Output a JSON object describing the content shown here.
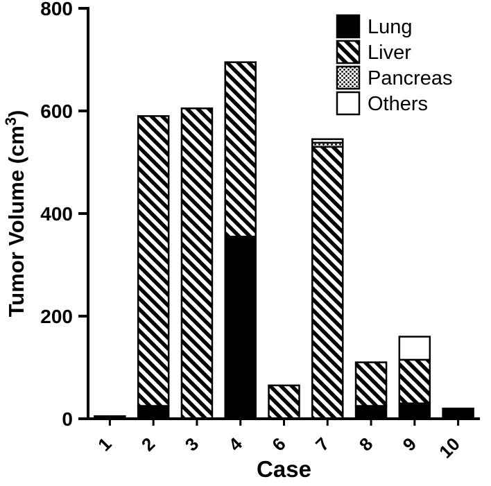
{
  "figure": {
    "background": "#ffffff",
    "axis_color": "#000000",
    "bar_outline_color": "#000000"
  },
  "chart_data": {
    "type": "bar",
    "stacked": true,
    "title": "",
    "xlabel": "Case",
    "ylabel": "Tumor Volume (cm³)",
    "ylabel_parts": {
      "base": "Tumor Volume (cm",
      "sup": "3",
      "close": ")"
    },
    "ylim": [
      0,
      800
    ],
    "yticks": [
      0,
      200,
      400,
      600,
      800
    ],
    "grid": false,
    "legend_position": "top-right",
    "categories": [
      "1",
      "2",
      "3",
      "4",
      "6",
      "7",
      "8",
      "9",
      "10"
    ],
    "series": [
      {
        "name": "Lung",
        "pattern": "solid",
        "values": [
          5,
          25,
          0,
          355,
          0,
          0,
          25,
          30,
          20
        ]
      },
      {
        "name": "Liver",
        "pattern": "diagonal-hatch",
        "values": [
          0,
          565,
          605,
          340,
          65,
          530,
          85,
          85,
          0
        ]
      },
      {
        "name": "Pancreas",
        "pattern": "dots",
        "values": [
          0,
          0,
          0,
          0,
          0,
          8,
          0,
          0,
          0
        ]
      },
      {
        "name": "Others",
        "pattern": "open",
        "values": [
          0,
          0,
          0,
          0,
          0,
          7,
          0,
          45,
          0
        ]
      }
    ]
  }
}
